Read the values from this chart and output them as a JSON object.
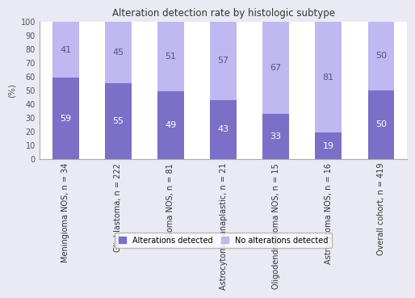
{
  "title": "Alteration detection rate by histologic subtype",
  "ylabel": "(%)",
  "categories": [
    "Meningioma NOS, n = 34",
    "Glioblastoma, n = 222",
    "Glioma NOS, n = 81",
    "Astrocytoma, anaplastic, n = 21",
    "Oligodendroglioma NOS, n = 15",
    "Astrocytoma NOS, n = 16",
    "Overall cohort, n = 419"
  ],
  "alterations_detected": [
    59,
    55,
    49,
    43,
    33,
    19,
    50
  ],
  "no_alterations_detected": [
    41,
    45,
    51,
    57,
    67,
    81,
    50
  ],
  "color_detected": "#7b6fc8",
  "color_no_detected": "#c0b8f0",
  "figure_background": "#eaeaf5",
  "plot_background": "#ffffff",
  "legend_labels": [
    "Alterations detected",
    "No alterations detected"
  ],
  "ylim": [
    0,
    100
  ],
  "yticks": [
    0,
    10,
    20,
    30,
    40,
    50,
    60,
    70,
    80,
    90,
    100
  ],
  "bar_width": 0.5,
  "title_fontsize": 8.5,
  "label_fontsize": 7.5,
  "tick_fontsize": 7,
  "annotation_fontsize": 8
}
